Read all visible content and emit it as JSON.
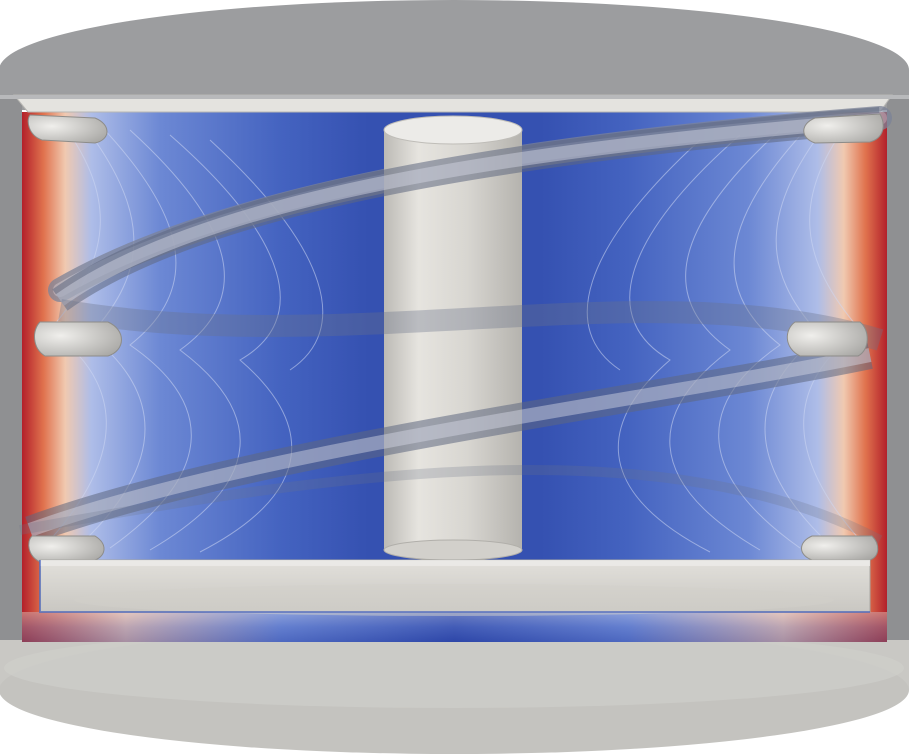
{
  "scene": {
    "colors": {
      "background": "#ffffff",
      "vessel_gray": "#9a9b9d",
      "vessel_rim": "#b9bbbd",
      "lid_light": "#e3e2de",
      "shaft": "#d6d4cf",
      "field_low": "#2d46a8",
      "field_mid": "#8fa6e0",
      "field_high": "#b3202a",
      "coil_tube": "#c9ccd6",
      "base_plate": "#d9d7d2"
    },
    "icons": [
      "vessel",
      "helical-coil",
      "central-shaft",
      "base-plate",
      "coil-cross-section"
    ]
  }
}
